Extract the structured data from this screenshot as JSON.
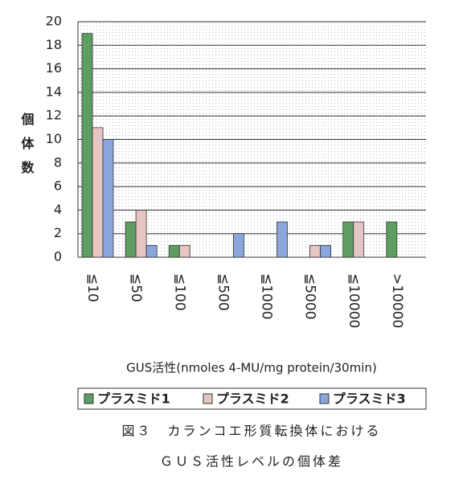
{
  "chart_data": {
    "type": "bar",
    "y_label": "個体数",
    "x_label": "GUS活性(nmoles 4-MU/mg protein/30min)",
    "categories": [
      "≦10",
      "≦50",
      "≦100",
      "≦500",
      "≦1000",
      "≦5000",
      "≦10000",
      ">10000"
    ],
    "series": [
      {
        "name": "プラスミド1",
        "color": "#5e9e62",
        "values": [
          19,
          3,
          1,
          0,
          0,
          0,
          3,
          3
        ]
      },
      {
        "name": "プラスミド2",
        "color": "#e6c6c4",
        "values": [
          11,
          4,
          1,
          0,
          0,
          1,
          3,
          0
        ]
      },
      {
        "name": "プラスミド3",
        "color": "#8aa6dc",
        "values": [
          10,
          1,
          0,
          2,
          3,
          1,
          0,
          0
        ]
      }
    ],
    "ylim": [
      0,
      20
    ],
    "yticks": [
      0,
      2,
      4,
      6,
      8,
      10,
      12,
      14,
      16,
      18,
      20
    ],
    "grid": true,
    "caption": [
      "図３　カランコエ形質転換体における",
      "ＧＵＳ活性レベルの個体差"
    ]
  }
}
